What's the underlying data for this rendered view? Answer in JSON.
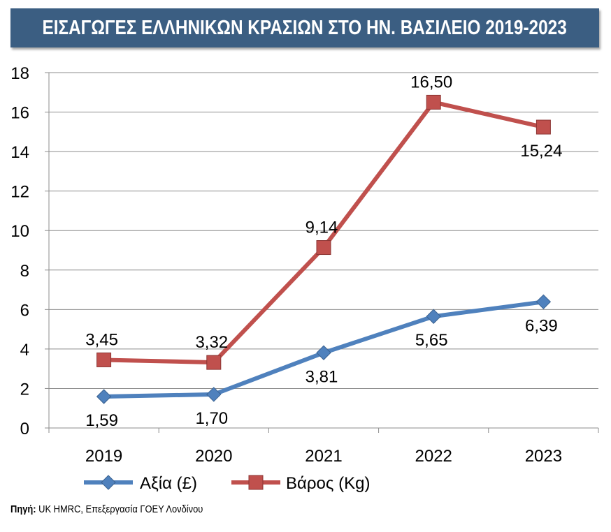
{
  "header": {
    "title": "ΕΙΣΑΓΩΓΕΣ ΕΛΛΗΝΙΚΩΝ ΚΡΑΣΙΩΝ ΣΤΟ ΗΝ. ΒΑΣΙΛΕΙΟ 2019-2023"
  },
  "footer": {
    "source_label": "Πηγή:",
    "source_text": " UK HMRC, Επεξεργασία ΓΟΕΥ Λονδίνου"
  },
  "chart_data": {
    "type": "line",
    "title": "ΕΙΣΑΓΩΓΕΣ ΕΛΛΗΝΙΚΩΝ ΚΡΑΣΙΩΝ ΣΤΟ ΗΝ. ΒΑΣΙΛΕΙΟ 2019-2023",
    "categories": [
      "2019",
      "2020",
      "2021",
      "2022",
      "2023"
    ],
    "ylim": [
      0,
      18
    ],
    "yticks": [
      0,
      2,
      4,
      6,
      8,
      10,
      12,
      14,
      16,
      18
    ],
    "grid": true,
    "legend_position": "bottom",
    "series": [
      {
        "name": "Αξία (£)",
        "values": [
          1.59,
          1.7,
          3.81,
          5.65,
          6.39
        ],
        "labels": [
          "1,59",
          "1,70",
          "3,81",
          "5,65",
          "6,39"
        ],
        "color": "#4f81bd",
        "marker": "diamond"
      },
      {
        "name": "Βάρος (Kg)",
        "values": [
          3.45,
          3.32,
          9.14,
          16.5,
          15.24
        ],
        "labels": [
          "3,45",
          "3,32",
          "9,14",
          "16,50",
          "15,24"
        ],
        "color": "#c0504d",
        "marker": "square"
      }
    ]
  }
}
